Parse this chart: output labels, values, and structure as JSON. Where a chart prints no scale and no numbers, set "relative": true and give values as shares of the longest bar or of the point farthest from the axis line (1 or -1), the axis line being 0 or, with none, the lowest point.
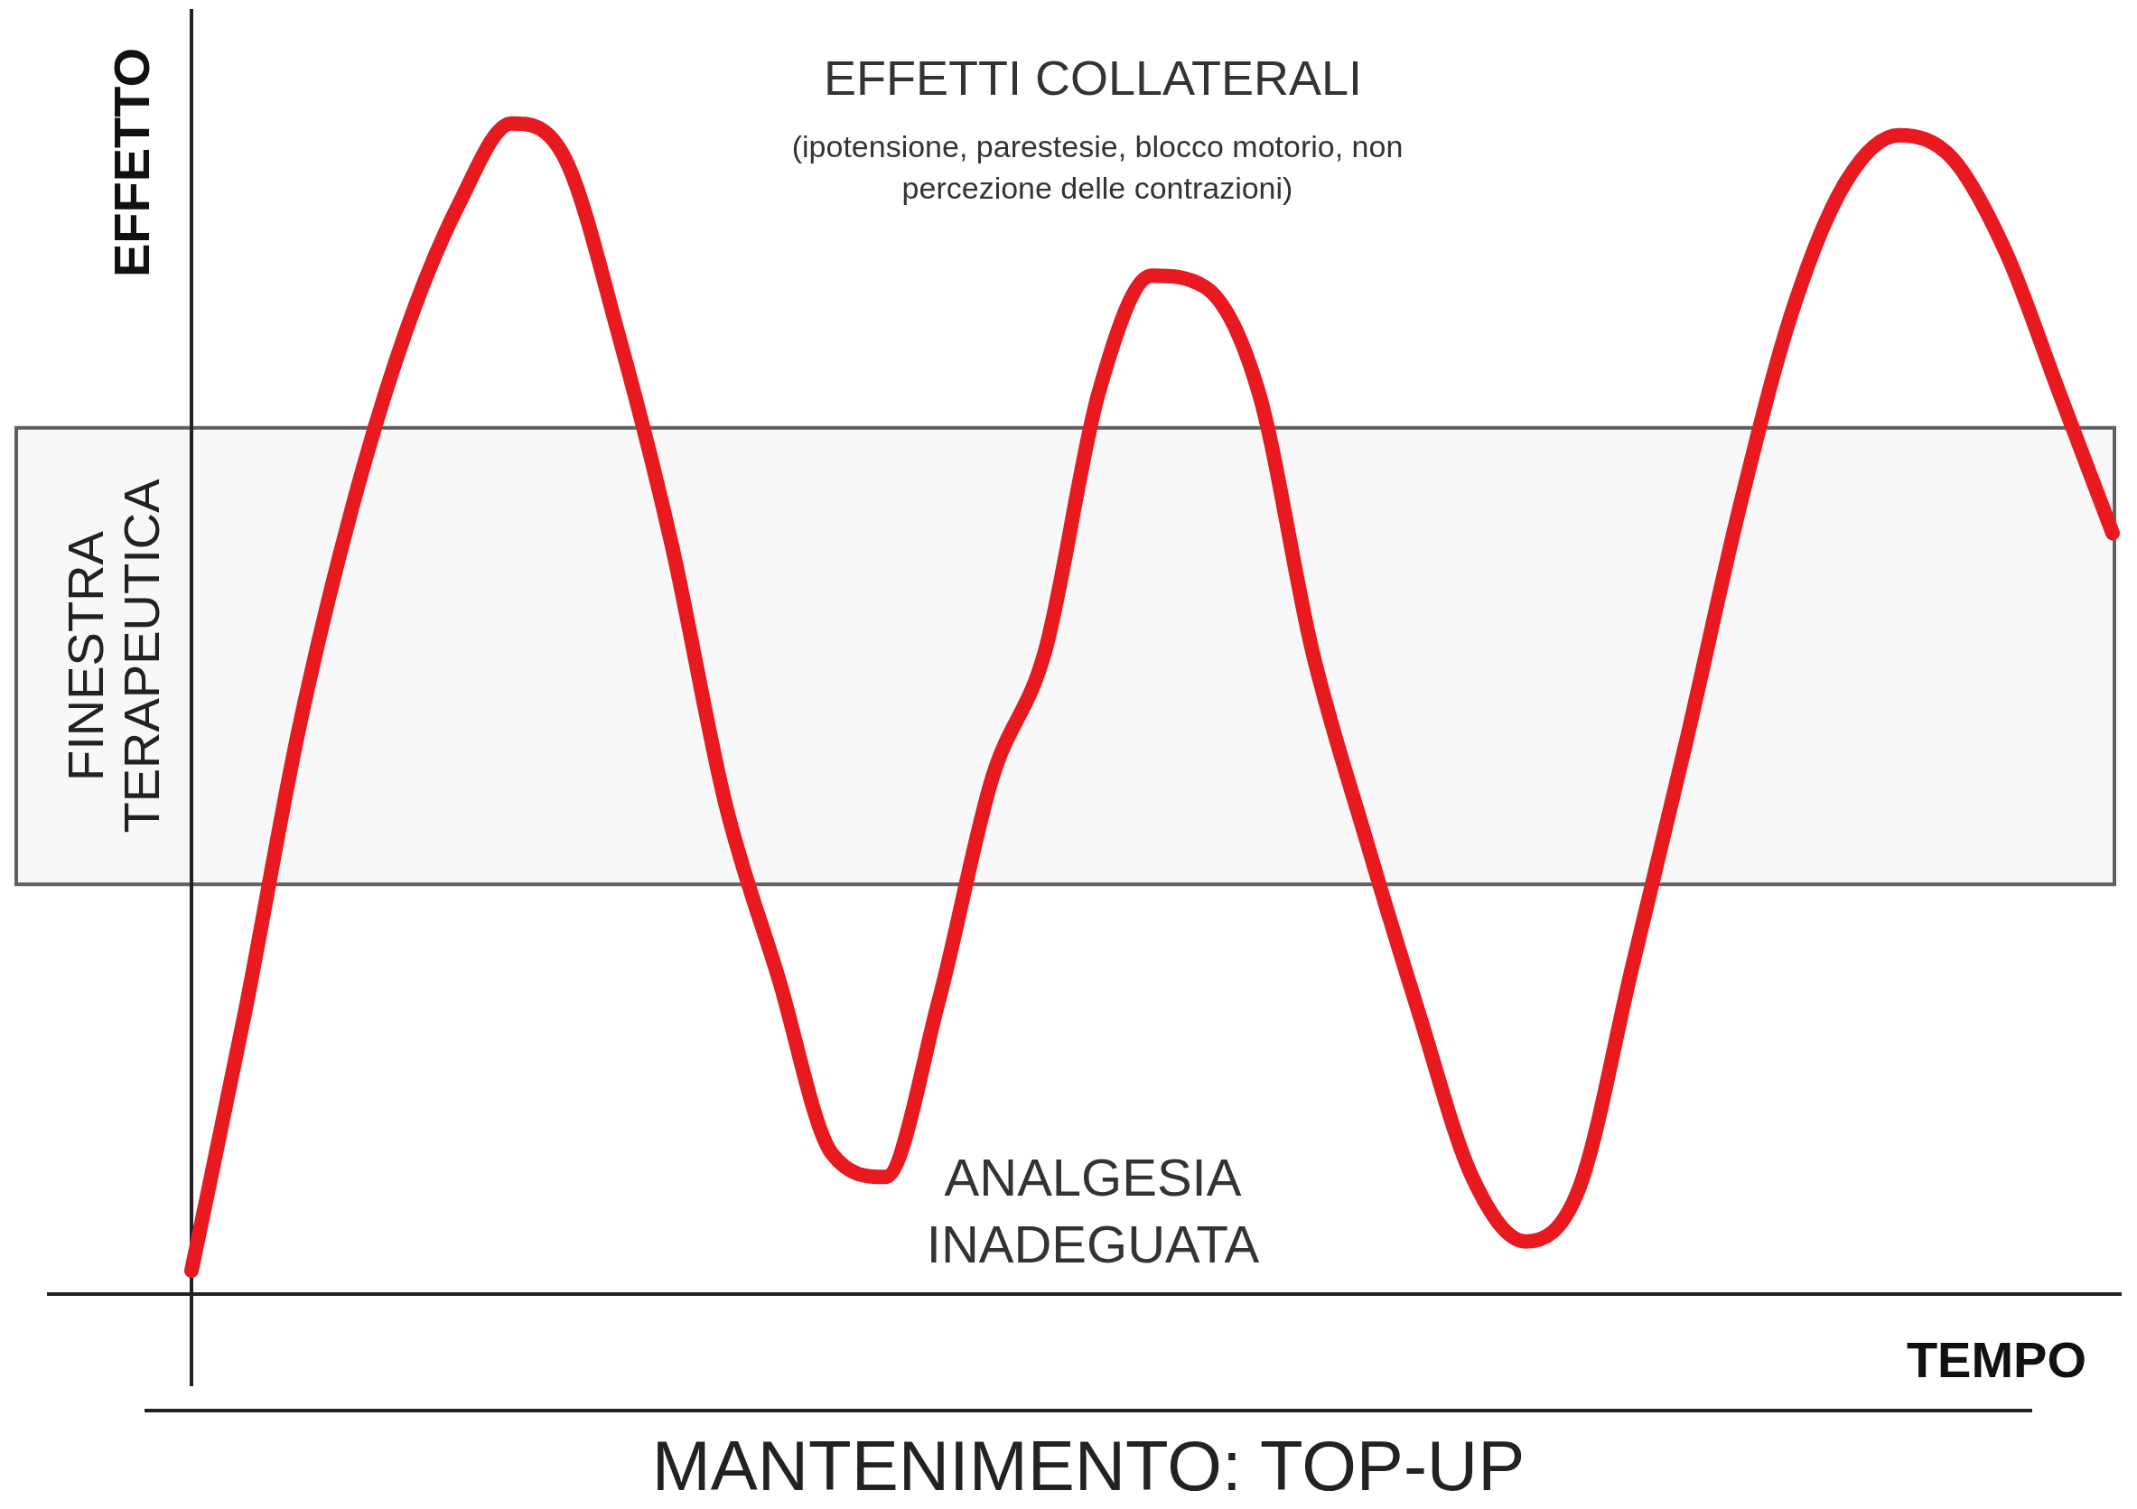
{
  "chart_data": {
    "type": "line",
    "relative": true,
    "title": "MANTENIMENTO: TOP-UP",
    "xlabel": "TEMPO",
    "ylabel": "EFFETTO",
    "categories": [
      null,
      null,
      null,
      null,
      null,
      null,
      null,
      null,
      null,
      null,
      null,
      null,
      null,
      null,
      null,
      null,
      null,
      null,
      null,
      null,
      null,
      null,
      null,
      null,
      null,
      null,
      null,
      null,
      null,
      null,
      null,
      null,
      null,
      null,
      null,
      null,
      null
    ],
    "series": [
      {
        "color": "#e8191f",
        "values": [
          0.02,
          0.24,
          0.48,
          0.67,
          0.82,
          0.93,
          1,
          0.97,
          0.82,
          0.64,
          0.42,
          0.27,
          0.12,
          0.1,
          0.25,
          0.44,
          0.55,
          0.77,
          0.87,
          0.86,
          0.77,
          0.55,
          0.39,
          0.24,
          0.1,
          0.045,
          0.09,
          0.28,
          0.47,
          0.67,
          0.84,
          0.95,
          0.99,
          0.97,
          0.89,
          0.77,
          0.65
        ]
      }
    ],
    "bands": [
      {
        "axis": "y",
        "from": 0.35,
        "to": 0.74,
        "label": "FINESTRA TERAPEUTICA"
      }
    ],
    "annotations": [
      "EFFETTI COLLATERALI",
      "(ipotensione, parestesie, blocco motorio, non percezione delle contrazioni)",
      "ANALGESIA INADEGUATA"
    ],
    "legend": false
  }
}
